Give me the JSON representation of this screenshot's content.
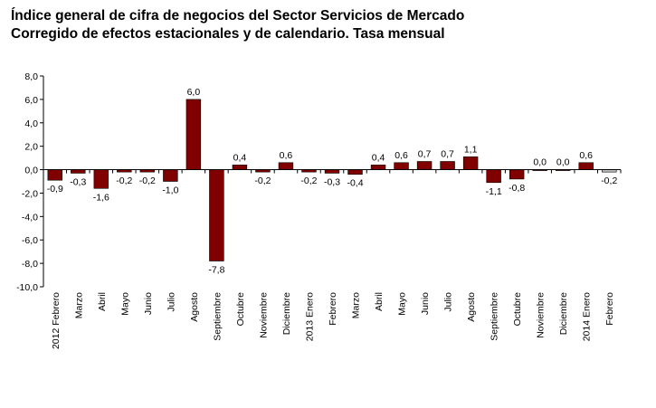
{
  "chart_data": {
    "type": "bar",
    "title": "Índice general de cifra de negocios del Sector Servicios de Mercado",
    "subtitle": "Corregido de efectos estacionales y de calendario. Tasa mensual",
    "categories": [
      "2012 Febrero",
      "Marzo",
      "Abril",
      "Mayo",
      "Junio",
      "Julio",
      "Agosto",
      "Septiembre",
      "Octubre",
      "Noviembre",
      "Diciembre",
      "2013 Enero",
      "Febrero",
      "Marzo",
      "Abril",
      "Mayo",
      "Junio",
      "Julio",
      "Agosto",
      "Septiembre",
      "Octubre",
      "Noviembre",
      "Diciembre",
      "2014 Enero",
      "Febrero"
    ],
    "values": [
      -0.9,
      -0.3,
      -1.6,
      -0.2,
      -0.2,
      -1.0,
      6.0,
      -7.8,
      0.4,
      -0.2,
      0.6,
      -0.2,
      -0.3,
      -0.4,
      0.4,
      0.6,
      0.7,
      0.7,
      1.1,
      -1.1,
      -0.8,
      0.0,
      0.0,
      0.6,
      -0.2
    ],
    "value_labels": [
      "-0,9",
      "-0,3",
      "-1,6",
      "-0,2",
      "-0,2",
      "-1,0",
      "6,0",
      "-7,8",
      "0,4",
      "-0,2",
      "0,6",
      "-0,2",
      "-0,3",
      "-0,4",
      "0,4",
      "0,6",
      "0,7",
      "0,7",
      "1,1",
      "-1,1",
      "-0,8",
      "0,0",
      "0,0",
      "0,6",
      "-0,2"
    ],
    "ylim": [
      -10,
      8
    ],
    "yticks": [
      8,
      6,
      4,
      2,
      0,
      -2,
      -4,
      -6,
      -8,
      -10
    ],
    "ytick_labels": [
      "8,0",
      "6,0",
      "4,0",
      "2,0",
      "0,0",
      "-2,0",
      "-4,0",
      "-6,0",
      "-8,0",
      "-10,0"
    ],
    "highlight": [
      false,
      false,
      false,
      false,
      false,
      false,
      false,
      false,
      false,
      false,
      false,
      false,
      false,
      false,
      false,
      false,
      false,
      false,
      false,
      false,
      false,
      false,
      false,
      false,
      true
    ],
    "colors": {
      "bar": "#800000",
      "highlight": "#c0c0c0",
      "axis": "#000000"
    },
    "grid": false,
    "legend": "none"
  }
}
